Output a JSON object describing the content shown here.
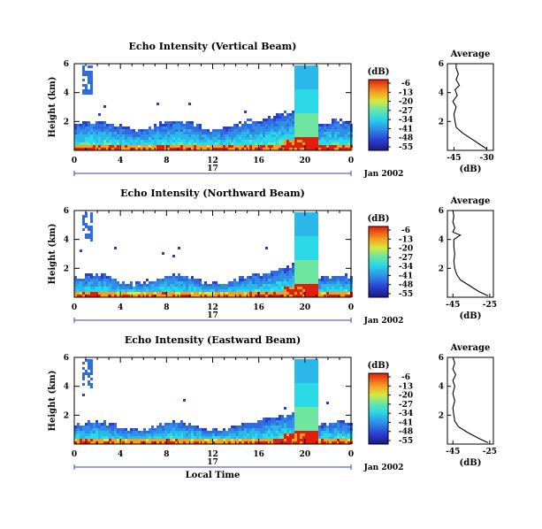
{
  "chart_data": [
    {
      "type": "heatmap",
      "title": "Echo Intensity (Vertical Beam)",
      "ylabel": "Height (km)",
      "xlabel": "",
      "x_ticks": [
        "0",
        "4",
        "8",
        "12",
        "16",
        "20",
        "0"
      ],
      "y_ticks": [
        "6",
        "4",
        "2"
      ],
      "ylim": [
        0,
        6
      ],
      "xlim_hours": [
        0,
        24
      ],
      "date_center": "17",
      "date_right": "Jan 2002",
      "colorbar": {
        "unit": "(dB)",
        "ticks": [
          "-6",
          "-13",
          "-20",
          "-27",
          "-34",
          "-41",
          "-48",
          "-55"
        ]
      },
      "profile": {
        "title": "Average",
        "xlabel": "(dB)",
        "xticks": [
          "-45",
          "-30"
        ],
        "xlim": [
          -48,
          -27
        ],
        "yticks": [
          "6",
          "4",
          "2"
        ],
        "heights": [
          0.1,
          0.4,
          0.8,
          1.2,
          1.6,
          2.0,
          2.5,
          3.0,
          3.4,
          3.8,
          4.2,
          4.5,
          4.9,
          5.3,
          5.7,
          6.0
        ],
        "values": [
          -30,
          -33,
          -37,
          -41,
          -44,
          -44.5,
          -45,
          -44,
          -45.5,
          -43.5,
          -44.5,
          -42.5,
          -44,
          -43,
          -44,
          -44
        ]
      }
    },
    {
      "type": "heatmap",
      "title": "Echo Intensity (Northward Beam)",
      "ylabel": "Height (km)",
      "xlabel": "",
      "x_ticks": [
        "0",
        "4",
        "8",
        "12",
        "16",
        "20",
        "0"
      ],
      "y_ticks": [
        "6",
        "4",
        "2"
      ],
      "ylim": [
        0,
        6
      ],
      "xlim_hours": [
        0,
        24
      ],
      "date_center": "17",
      "date_right": "Jan 2002",
      "colorbar": {
        "unit": "(dB)",
        "ticks": [
          "-6",
          "-13",
          "-20",
          "-27",
          "-34",
          "-41",
          "-48",
          "-55"
        ]
      },
      "profile": {
        "title": "Average",
        "xlabel": "(dB)",
        "xticks": [
          "-45",
          "-25"
        ],
        "xlim": [
          -48,
          -23
        ],
        "yticks": [
          "6",
          "4",
          "2"
        ],
        "heights": [
          0.1,
          0.4,
          0.8,
          1.2,
          1.6,
          2.0,
          2.5,
          3.0,
          3.5,
          4.0,
          4.3,
          4.5,
          4.8,
          5.2,
          5.6,
          6.0
        ],
        "values": [
          -26,
          -31,
          -36,
          -41,
          -43,
          -44,
          -44.5,
          -44,
          -44.5,
          -44.5,
          -41,
          -45,
          -44,
          -45,
          -44.5,
          -45
        ]
      }
    },
    {
      "type": "heatmap",
      "title": "Echo Intensity (Eastward Beam)",
      "ylabel": "Height (km)",
      "xlabel": "Local Time",
      "x_ticks": [
        "0",
        "4",
        "8",
        "12",
        "16",
        "20",
        "0"
      ],
      "y_ticks": [
        "6",
        "4",
        "2"
      ],
      "ylim": [
        0,
        6
      ],
      "xlim_hours": [
        0,
        24
      ],
      "date_center": "17",
      "date_right": "Jan 2002",
      "colorbar": {
        "unit": "(dB)",
        "ticks": [
          "-6",
          "-13",
          "-20",
          "-27",
          "-34",
          "-41",
          "-48",
          "-55"
        ]
      },
      "profile": {
        "title": "Average",
        "xlabel": "(dB)",
        "xticks": [
          "-45",
          "-25"
        ],
        "xlim": [
          -48,
          -23
        ],
        "yticks": [
          "6",
          "4",
          "2"
        ],
        "heights": [
          0.1,
          0.4,
          0.8,
          1.2,
          1.6,
          2.0,
          2.5,
          3.0,
          3.5,
          4.0,
          4.4,
          4.8,
          5.2,
          5.6,
          6.0
        ],
        "values": [
          -26,
          -31,
          -37,
          -42,
          -44,
          -44.5,
          -45,
          -44,
          -45,
          -44,
          -45,
          -43.5,
          -45,
          -44,
          -45
        ]
      }
    }
  ]
}
